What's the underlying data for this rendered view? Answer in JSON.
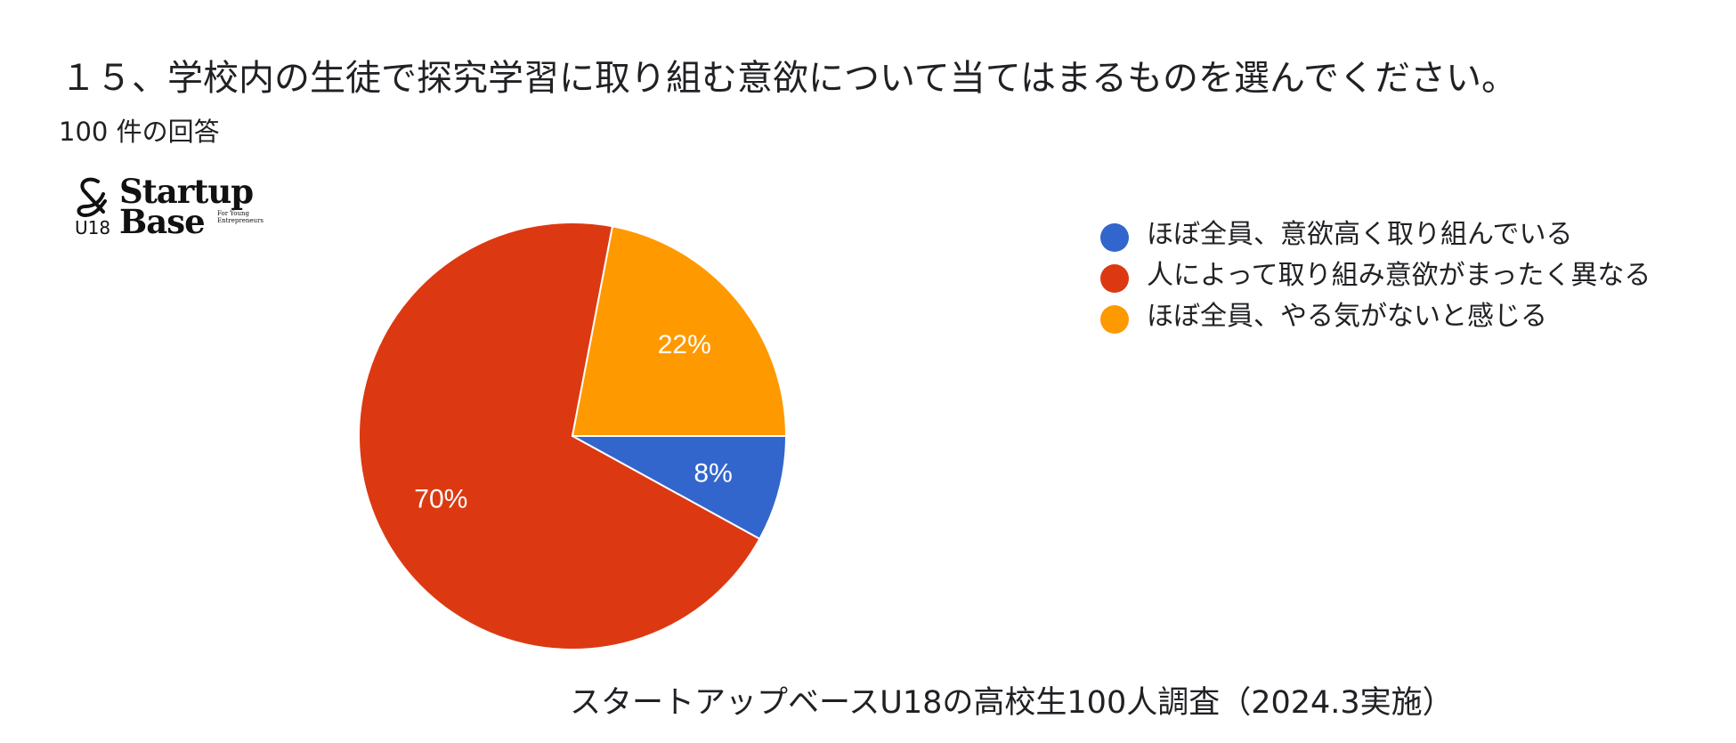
{
  "question": "１５、学校内の生徒で探究学習に取り組む意欲について当てはまるものを選んでください。",
  "response_count": "100 件の回答",
  "logo": {
    "text_u18": "U18",
    "text_line1": "Startup",
    "text_line2": "Base",
    "text_small": "For Young Entrepreneurs"
  },
  "chart_data": {
    "type": "pie",
    "title": "１５、学校内の生徒で探究学習に取り組む意欲について当てはまるものを選んでください。",
    "categories": [
      "ほぼ全員、意欲高く取り組んでいる",
      "人によって取り組み意欲がまったく異なる",
      "ほぼ全員、やる気がないと感じる"
    ],
    "values": [
      8,
      70,
      22
    ],
    "labels": [
      "8%",
      "70%",
      "22%"
    ],
    "colors": [
      "#3366cc",
      "#dc3912",
      "#ff9900"
    ],
    "legend_position": "right"
  },
  "legend": [
    {
      "label": "ほぼ全員、意欲高く取り組んでいる",
      "color": "#3366cc"
    },
    {
      "label": "人によって取り組み意欲がまったく異なる",
      "color": "#dc3912"
    },
    {
      "label": "ほぼ全員、やる気がないと感じる",
      "color": "#ff9900"
    }
  ],
  "footer": "スタートアップベースU18の高校生100人調査（2024.3実施）"
}
